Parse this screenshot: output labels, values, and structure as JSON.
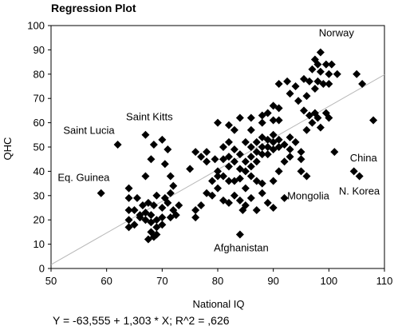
{
  "chart_data": {
    "type": "scatter",
    "title": "Regression Plot",
    "xlabel": "National IQ",
    "ylabel": "QHC",
    "xlim": [
      50,
      110
    ],
    "ylim": [
      0,
      100
    ],
    "x_ticks": [
      "50",
      "60",
      "70",
      "80",
      "90",
      "100",
      "110"
    ],
    "y_ticks": [
      "0",
      "10",
      "20",
      "30",
      "40",
      "50",
      "60",
      "70",
      "80",
      "90",
      "100"
    ],
    "grid": false,
    "regression_line": {
      "intercept": -63.555,
      "slope": 1.303
    },
    "equation": "Y = -63,555 + 1,303 * X; R^2 = ,626",
    "annotations": [
      {
        "text": "Norway",
        "x": 98.2,
        "y": 95.5
      },
      {
        "text": "Saint Kitts",
        "x": 63.5,
        "y": 61
      },
      {
        "text": "Saint Lucia",
        "x": 52.2,
        "y": 55.5
      },
      {
        "text": "Eq. Guinea",
        "x": 51.2,
        "y": 36
      },
      {
        "text": "China",
        "x": 103.8,
        "y": 44
      },
      {
        "text": "N. Korea",
        "x": 101.8,
        "y": 30.5
      },
      {
        "text": "Mongolia",
        "x": 92.5,
        "y": 28.5
      },
      {
        "text": "Afghanistan",
        "x": 79.3,
        "y": 7
      }
    ],
    "points": [
      [
        98.5,
        89
      ],
      [
        97.5,
        86
      ],
      [
        98,
        84
      ],
      [
        99.5,
        84
      ],
      [
        100.5,
        84
      ],
      [
        97,
        82
      ],
      [
        98.5,
        81
      ],
      [
        100,
        80
      ],
      [
        101.5,
        80
      ],
      [
        95.5,
        78
      ],
      [
        96.5,
        77
      ],
      [
        98,
        77
      ],
      [
        99,
        76
      ],
      [
        100,
        76
      ],
      [
        97.5,
        74
      ],
      [
        94,
        75
      ],
      [
        92.5,
        77
      ],
      [
        91,
        76
      ],
      [
        93,
        72
      ],
      [
        96,
        71
      ],
      [
        94.5,
        69
      ],
      [
        95.5,
        65
      ],
      [
        97.5,
        64
      ],
      [
        99.5,
        64
      ],
      [
        96.5,
        63
      ],
      [
        98,
        62
      ],
      [
        100,
        62
      ],
      [
        97,
        60
      ],
      [
        98.5,
        58
      ],
      [
        96,
        57
      ],
      [
        105,
        80
      ],
      [
        106,
        76
      ],
      [
        108,
        61
      ],
      [
        104.5,
        40
      ],
      [
        105.5,
        38
      ],
      [
        101,
        48
      ],
      [
        67,
        55
      ],
      [
        68.5,
        51
      ],
      [
        70,
        53
      ],
      [
        71,
        49
      ],
      [
        68,
        45
      ],
      [
        70.5,
        43
      ],
      [
        71.5,
        38
      ],
      [
        67,
        38
      ],
      [
        62,
        51
      ],
      [
        59,
        31
      ],
      [
        64,
        33
      ],
      [
        64,
        29
      ],
      [
        65.5,
        29
      ],
      [
        66.5,
        26
      ],
      [
        67.5,
        27
      ],
      [
        68.5,
        26
      ],
      [
        70,
        25
      ],
      [
        71,
        27
      ],
      [
        72,
        24
      ],
      [
        73,
        26
      ],
      [
        72.5,
        22
      ],
      [
        71.5,
        21
      ],
      [
        70,
        21
      ],
      [
        69,
        20
      ],
      [
        68,
        22
      ],
      [
        67,
        23
      ],
      [
        66,
        22
      ],
      [
        65,
        24
      ],
      [
        64,
        24
      ],
      [
        64,
        20
      ],
      [
        64,
        17
      ],
      [
        65,
        18
      ],
      [
        66,
        21
      ],
      [
        67,
        20
      ],
      [
        68,
        19
      ],
      [
        69,
        17
      ],
      [
        70,
        18
      ],
      [
        68,
        15
      ],
      [
        68.5,
        13
      ],
      [
        67.5,
        12
      ],
      [
        69,
        14
      ],
      [
        70.5,
        29
      ],
      [
        71.5,
        31
      ],
      [
        72,
        34
      ],
      [
        69,
        30
      ],
      [
        75,
        41
      ],
      [
        76,
        48
      ],
      [
        77,
        46
      ],
      [
        78,
        48
      ],
      [
        78,
        44
      ],
      [
        79.5,
        45
      ],
      [
        80,
        40
      ],
      [
        80,
        60
      ],
      [
        81,
        50
      ],
      [
        82,
        52
      ],
      [
        82,
        46
      ],
      [
        82,
        42
      ],
      [
        83,
        49
      ],
      [
        83,
        44
      ],
      [
        84,
        47
      ],
      [
        84,
        41
      ],
      [
        84,
        37
      ],
      [
        85,
        52
      ],
      [
        85,
        44
      ],
      [
        85,
        40
      ],
      [
        86,
        57
      ],
      [
        86,
        50
      ],
      [
        86,
        46
      ],
      [
        86,
        42
      ],
      [
        86,
        38
      ],
      [
        87,
        52
      ],
      [
        87,
        48
      ],
      [
        87,
        44
      ],
      [
        88,
        54
      ],
      [
        88,
        50
      ],
      [
        88,
        47
      ],
      [
        89,
        53
      ],
      [
        89,
        50
      ],
      [
        89,
        47
      ],
      [
        90,
        55
      ],
      [
        90,
        52
      ],
      [
        90,
        49
      ],
      [
        91,
        53
      ],
      [
        91,
        50
      ],
      [
        92,
        51
      ],
      [
        93,
        54
      ],
      [
        93,
        49
      ],
      [
        94,
        52
      ],
      [
        95,
        48
      ],
      [
        95,
        45
      ],
      [
        96,
        38
      ],
      [
        88,
        63
      ],
      [
        89,
        64
      ],
      [
        88,
        60
      ],
      [
        90,
        61
      ],
      [
        91,
        61
      ],
      [
        91,
        66
      ],
      [
        90,
        67
      ],
      [
        86,
        62
      ],
      [
        82,
        59
      ],
      [
        83,
        57
      ],
      [
        84,
        62
      ],
      [
        81,
        45
      ],
      [
        81,
        38
      ],
      [
        82,
        36
      ],
      [
        80,
        33
      ],
      [
        79,
        30
      ],
      [
        78,
        31
      ],
      [
        77,
        26
      ],
      [
        76,
        24
      ],
      [
        76,
        21
      ],
      [
        82,
        27
      ],
      [
        84,
        28
      ],
      [
        85,
        26
      ],
      [
        86,
        29
      ],
      [
        87,
        24
      ],
      [
        88,
        31
      ],
      [
        89,
        27
      ],
      [
        90,
        25
      ],
      [
        92,
        29
      ],
      [
        84,
        14
      ],
      [
        84.5,
        24
      ],
      [
        83,
        36
      ],
      [
        85,
        33
      ],
      [
        83,
        30
      ],
      [
        87,
        36
      ],
      [
        88,
        35
      ],
      [
        90,
        36
      ],
      [
        91,
        40
      ],
      [
        92,
        44
      ],
      [
        93,
        46
      ],
      [
        95,
        40
      ],
      [
        80,
        38
      ],
      [
        79,
        36
      ],
      [
        81,
        28
      ]
    ]
  }
}
